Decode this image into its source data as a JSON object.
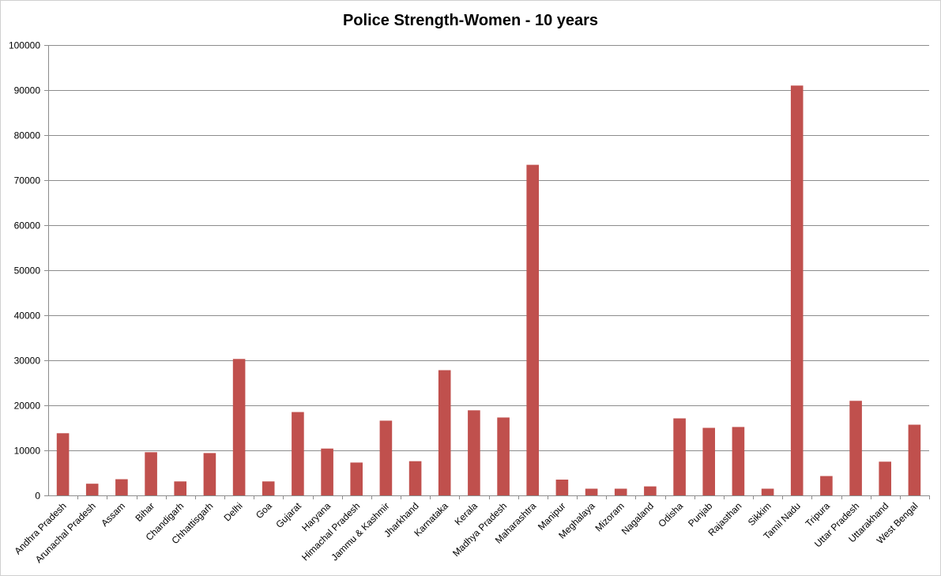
{
  "chart_data": {
    "type": "bar",
    "title": "Police Strength-Women - 10 years",
    "xlabel": "",
    "ylabel": "",
    "ylim": [
      0,
      100000
    ],
    "yticks": [
      "0",
      "10000",
      "20000",
      "30000",
      "40000",
      "50000",
      "60000",
      "70000",
      "80000",
      "90000",
      "100000"
    ],
    "grid": true,
    "legend": "none",
    "bar_color": "#c0504d",
    "categories": [
      "Andhra Pradesh",
      "Arunachal Pradesh",
      "Assam",
      "Bihar",
      "Chandigarh",
      "Chhattisgarh",
      "Delhi",
      "Goa",
      "Gujarat",
      "Haryana",
      "Himachal Pradesh",
      "Jammu & Kashmir",
      "Jharkhand",
      "Karnataka",
      "Kerala",
      "Madhya Pradesh",
      "Maharashtra",
      "Manipur",
      "Meghalaya",
      "Mizoram",
      "Nagaland",
      "Odisha",
      "Punjab",
      "Rajasthan",
      "Sikkim",
      "Tamil Nadu",
      "Tripura",
      "Uttar Pradesh",
      "Uttarakhand",
      "West Bengal"
    ],
    "values": [
      13800,
      2600,
      3600,
      9600,
      3100,
      9400,
      30300,
      3100,
      18500,
      10400,
      7300,
      16600,
      7600,
      27800,
      18900,
      17300,
      73400,
      3500,
      1500,
      1500,
      2000,
      17100,
      15000,
      15200,
      1500,
      91000,
      4300,
      21000,
      7500,
      15700
    ]
  }
}
